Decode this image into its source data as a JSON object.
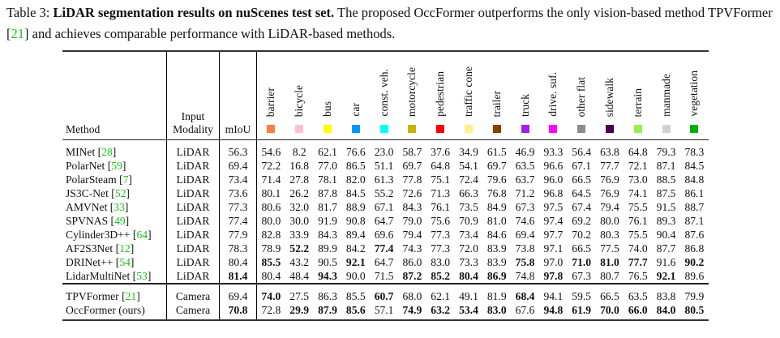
{
  "caption": {
    "label": "Table 3:",
    "title": "LiDAR segmentation results on nuScenes test set.",
    "text_a": "The proposed OccFormer outperforms the only vision-based method TPVFormer [",
    "ref": "21",
    "text_b": "] and achieves comparable performance with LiDAR-based methods."
  },
  "headers": {
    "method": "Method",
    "modality_1": "Input",
    "modality_2": "Modality",
    "miou": "mIoU"
  },
  "classes": [
    {
      "name": "barrier",
      "color": "#ff7f3f"
    },
    {
      "name": "bicycle",
      "color": "#ffc0cb"
    },
    {
      "name": "bus",
      "color": "#ffff00"
    },
    {
      "name": "car",
      "color": "#0096ff"
    },
    {
      "name": "const. veh.",
      "color": "#00ffff"
    },
    {
      "name": "motorcycle",
      "color": "#c8b400"
    },
    {
      "name": "pedestrian",
      "color": "#ff0000"
    },
    {
      "name": "traffic cone",
      "color": "#fff08c"
    },
    {
      "name": "trailer",
      "color": "#8b4000"
    },
    {
      "name": "truck",
      "color": "#a020f0"
    },
    {
      "name": "drive. suf.",
      "color": "#ff00ff"
    },
    {
      "name": "other flat",
      "color": "#8c8c8c"
    },
    {
      "name": "sidewalk",
      "color": "#4b004b"
    },
    {
      "name": "terrain",
      "color": "#96f050"
    },
    {
      "name": "manmade",
      "color": "#d2d2d2"
    },
    {
      "name": "vegetation",
      "color": "#00af00"
    }
  ],
  "rows": [
    {
      "method": "MINet",
      "ref": "28",
      "modality": "LiDAR",
      "miou": "56.3",
      "miou_bold": false,
      "values": [
        "54.6",
        "8.2",
        "62.1",
        "76.6",
        "23.0",
        "58.7",
        "37.6",
        "34.9",
        "61.5",
        "46.9",
        "93.3",
        "56.4",
        "63.8",
        "64.8",
        "79.3",
        "78.3"
      ],
      "bold": []
    },
    {
      "method": "PolarNet",
      "ref": "59",
      "modality": "LiDAR",
      "miou": "69.4",
      "miou_bold": false,
      "values": [
        "72.2",
        "16.8",
        "77.0",
        "86.5",
        "51.1",
        "69.7",
        "64.8",
        "54.1",
        "69.7",
        "63.5",
        "96.6",
        "67.1",
        "77.7",
        "72.1",
        "87.1",
        "84.5"
      ],
      "bold": []
    },
    {
      "method": "PolarSteam",
      "ref": "7",
      "modality": "LiDAR",
      "miou": "73.4",
      "miou_bold": false,
      "values": [
        "71.4",
        "27.8",
        "78.1",
        "82.0",
        "61.3",
        "77.8",
        "75.1",
        "72.4",
        "79.6",
        "63.7",
        "96.0",
        "66.5",
        "76.9",
        "73.0",
        "88.5",
        "84.8"
      ],
      "bold": []
    },
    {
      "method": "JS3C-Net",
      "ref": "52",
      "modality": "LiDAR",
      "miou": "73.6",
      "miou_bold": false,
      "values": [
        "80.1",
        "26.2",
        "87.8",
        "84.5",
        "55.2",
        "72.6",
        "71.3",
        "66.3",
        "76.8",
        "71.2",
        "96.8",
        "64.5",
        "76.9",
        "74.1",
        "87.5",
        "86.1"
      ],
      "bold": []
    },
    {
      "method": "AMVNet",
      "ref": "33",
      "modality": "LiDAR",
      "miou": "77.3",
      "miou_bold": false,
      "values": [
        "80.6",
        "32.0",
        "81.7",
        "88.9",
        "67.1",
        "84.3",
        "76.1",
        "73.5",
        "84.9",
        "67.3",
        "97.5",
        "67.4",
        "79.4",
        "75.5",
        "91.5",
        "88.7"
      ],
      "bold": []
    },
    {
      "method": "SPVNAS",
      "ref": "49",
      "modality": "LiDAR",
      "miou": "77.4",
      "miou_bold": false,
      "values": [
        "80.0",
        "30.0",
        "91.9",
        "90.8",
        "64.7",
        "79.0",
        "75.6",
        "70.9",
        "81.0",
        "74.6",
        "97.4",
        "69.2",
        "80.0",
        "76.1",
        "89.3",
        "87.1"
      ],
      "bold": []
    },
    {
      "method": "Cylinder3D++",
      "ref": "64",
      "modality": "LiDAR",
      "miou": "77.9",
      "miou_bold": false,
      "values": [
        "82.8",
        "33.9",
        "84.3",
        "89.4",
        "69.6",
        "79.4",
        "77.3",
        "73.4",
        "84.6",
        "69.4",
        "97.7",
        "70.2",
        "80.3",
        "75.5",
        "90.4",
        "87.6"
      ],
      "bold": []
    },
    {
      "method": "AF2S3Net",
      "ref": "12",
      "modality": "LiDAR",
      "miou": "78.3",
      "miou_bold": false,
      "values": [
        "78.9",
        "52.2",
        "89.9",
        "84.2",
        "77.4",
        "74.3",
        "77.3",
        "72.0",
        "83.9",
        "73.8",
        "97.1",
        "66.5",
        "77.5",
        "74.0",
        "87.7",
        "86.8"
      ],
      "bold": [
        1,
        4
      ]
    },
    {
      "method": "DRINet++",
      "ref": "54",
      "modality": "LiDAR",
      "miou": "80.4",
      "miou_bold": false,
      "values": [
        "85.5",
        "43.2",
        "90.5",
        "92.1",
        "64.7",
        "86.0",
        "83.0",
        "73.3",
        "83.9",
        "75.8",
        "97.0",
        "71.0",
        "81.0",
        "77.7",
        "91.6",
        "90.2"
      ],
      "bold": [
        0,
        3,
        9,
        11,
        12,
        13,
        15
      ]
    },
    {
      "method": "LidarMultiNet",
      "ref": "53",
      "modality": "LiDAR",
      "miou": "81.4",
      "miou_bold": true,
      "values": [
        "80.4",
        "48.4",
        "94.3",
        "90.0",
        "71.5",
        "87.2",
        "85.2",
        "80.4",
        "86.9",
        "74.8",
        "97.8",
        "67.3",
        "80.7",
        "76.5",
        "92.1",
        "89.6"
      ],
      "bold": [
        2,
        5,
        6,
        7,
        8,
        10,
        14
      ]
    },
    {
      "method": "TPVFormer",
      "ref": "21",
      "modality": "Camera",
      "miou": "69.4",
      "miou_bold": false,
      "values": [
        "74.0",
        "27.5",
        "86.3",
        "85.5",
        "60.7",
        "68.0",
        "62.1",
        "49.1",
        "81.9",
        "68.4",
        "94.1",
        "59.5",
        "66.5",
        "63.5",
        "83.8",
        "79.9"
      ],
      "bold": [
        0,
        4,
        9
      ]
    },
    {
      "method": "OccFormer (ours)",
      "ref": "",
      "modality": "Camera",
      "miou": "70.8",
      "miou_bold": true,
      "values": [
        "72.8",
        "29.9",
        "87.9",
        "85.6",
        "57.1",
        "74.9",
        "63.2",
        "53.4",
        "83.0",
        "67.6",
        "94.8",
        "61.9",
        "70.0",
        "66.0",
        "84.0",
        "80.5"
      ],
      "bold": [
        1,
        2,
        3,
        5,
        6,
        7,
        8,
        10,
        11,
        12,
        13,
        14,
        15
      ]
    }
  ]
}
